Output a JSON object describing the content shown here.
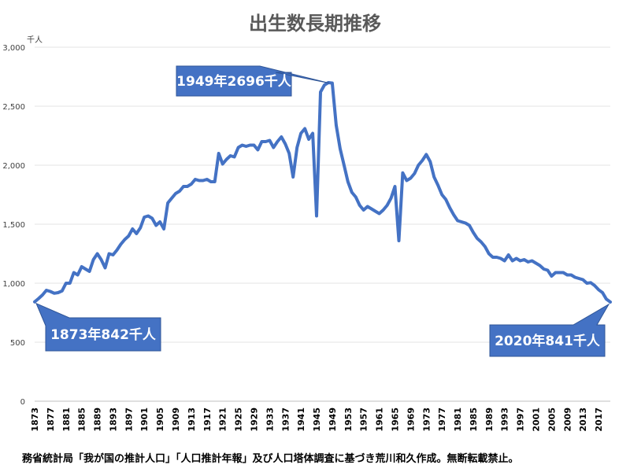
{
  "chart_data": {
    "type": "line",
    "title": "出生数長期推移",
    "unit_label": "千人",
    "ylim": [
      0,
      3000
    ],
    "yticks": [
      0,
      500,
      1000,
      1500,
      2000,
      2500,
      3000
    ],
    "ytick_labels": [
      "0",
      "500",
      "1,000",
      "1,500",
      "2,000",
      "2,500",
      "3,000"
    ],
    "xlim": [
      1873,
      2020
    ],
    "xtick_labels": [
      "1873",
      "1877",
      "1881",
      "1885",
      "1889",
      "1893",
      "1897",
      "1901",
      "1905",
      "1909",
      "1913",
      "1917",
      "1921",
      "1925",
      "1929",
      "1933",
      "1937",
      "1941",
      "1945",
      "1949",
      "1953",
      "1957",
      "1961",
      "1965",
      "1969",
      "1973",
      "1977",
      "1981",
      "1985",
      "1989",
      "1993",
      "1997",
      "2001",
      "2005",
      "2009",
      "2013",
      "2017"
    ],
    "grid": true,
    "line_color": "#4472c4",
    "series": [
      {
        "points": [
          [
            1873,
            842
          ],
          [
            1874,
            870
          ],
          [
            1875,
            900
          ],
          [
            1876,
            940
          ],
          [
            1877,
            930
          ],
          [
            1878,
            915
          ],
          [
            1879,
            920
          ],
          [
            1880,
            935
          ],
          [
            1881,
            1000
          ],
          [
            1882,
            1000
          ],
          [
            1883,
            1090
          ],
          [
            1884,
            1070
          ],
          [
            1885,
            1140
          ],
          [
            1886,
            1120
          ],
          [
            1887,
            1100
          ],
          [
            1888,
            1200
          ],
          [
            1889,
            1250
          ],
          [
            1890,
            1200
          ],
          [
            1891,
            1130
          ],
          [
            1892,
            1250
          ],
          [
            1893,
            1240
          ],
          [
            1894,
            1280
          ],
          [
            1895,
            1330
          ],
          [
            1896,
            1370
          ],
          [
            1897,
            1400
          ],
          [
            1898,
            1460
          ],
          [
            1899,
            1420
          ],
          [
            1900,
            1470
          ],
          [
            1901,
            1560
          ],
          [
            1902,
            1570
          ],
          [
            1903,
            1550
          ],
          [
            1904,
            1490
          ],
          [
            1905,
            1520
          ],
          [
            1906,
            1460
          ],
          [
            1907,
            1680
          ],
          [
            1908,
            1720
          ],
          [
            1909,
            1760
          ],
          [
            1910,
            1780
          ],
          [
            1911,
            1820
          ],
          [
            1912,
            1820
          ],
          [
            1913,
            1840
          ],
          [
            1914,
            1880
          ],
          [
            1915,
            1870
          ],
          [
            1916,
            1870
          ],
          [
            1917,
            1880
          ],
          [
            1918,
            1860
          ],
          [
            1919,
            1860
          ],
          [
            1920,
            2100
          ],
          [
            1921,
            2010
          ],
          [
            1922,
            2050
          ],
          [
            1923,
            2080
          ],
          [
            1924,
            2070
          ],
          [
            1925,
            2150
          ],
          [
            1926,
            2170
          ],
          [
            1927,
            2160
          ],
          [
            1928,
            2170
          ],
          [
            1929,
            2170
          ],
          [
            1930,
            2130
          ],
          [
            1931,
            2200
          ],
          [
            1932,
            2200
          ],
          [
            1933,
            2210
          ],
          [
            1934,
            2150
          ],
          [
            1935,
            2200
          ],
          [
            1936,
            2240
          ],
          [
            1937,
            2180
          ],
          [
            1938,
            2100
          ],
          [
            1939,
            1900
          ],
          [
            1940,
            2150
          ],
          [
            1941,
            2270
          ],
          [
            1942,
            2310
          ],
          [
            1943,
            2220
          ],
          [
            1944,
            2270
          ],
          [
            1945,
            1570
          ],
          [
            1946,
            2620
          ],
          [
            1947,
            2680
          ],
          [
            1948,
            2700
          ],
          [
            1949,
            2696
          ],
          [
            1950,
            2340
          ],
          [
            1951,
            2140
          ],
          [
            1952,
            2000
          ],
          [
            1953,
            1860
          ],
          [
            1954,
            1770
          ],
          [
            1955,
            1730
          ],
          [
            1956,
            1660
          ],
          [
            1957,
            1620
          ],
          [
            1958,
            1650
          ],
          [
            1959,
            1630
          ],
          [
            1960,
            1610
          ],
          [
            1961,
            1590
          ],
          [
            1962,
            1620
          ],
          [
            1963,
            1660
          ],
          [
            1964,
            1720
          ],
          [
            1965,
            1820
          ],
          [
            1966,
            1360
          ],
          [
            1967,
            1935
          ],
          [
            1968,
            1870
          ],
          [
            1969,
            1890
          ],
          [
            1970,
            1930
          ],
          [
            1971,
            2000
          ],
          [
            1972,
            2040
          ],
          [
            1973,
            2091
          ],
          [
            1974,
            2030
          ],
          [
            1975,
            1900
          ],
          [
            1976,
            1830
          ],
          [
            1977,
            1750
          ],
          [
            1978,
            1710
          ],
          [
            1979,
            1640
          ],
          [
            1980,
            1580
          ],
          [
            1981,
            1530
          ],
          [
            1982,
            1520
          ],
          [
            1983,
            1510
          ],
          [
            1984,
            1490
          ],
          [
            1985,
            1430
          ],
          [
            1986,
            1380
          ],
          [
            1987,
            1350
          ],
          [
            1988,
            1310
          ],
          [
            1989,
            1250
          ],
          [
            1990,
            1220
          ],
          [
            1991,
            1220
          ],
          [
            1992,
            1210
          ],
          [
            1993,
            1190
          ],
          [
            1994,
            1240
          ],
          [
            1995,
            1190
          ],
          [
            1996,
            1210
          ],
          [
            1997,
            1190
          ],
          [
            1998,
            1200
          ],
          [
            1999,
            1180
          ],
          [
            2000,
            1190
          ],
          [
            2001,
            1170
          ],
          [
            2002,
            1150
          ],
          [
            2003,
            1120
          ],
          [
            2004,
            1110
          ],
          [
            2005,
            1060
          ],
          [
            2006,
            1090
          ],
          [
            2007,
            1090
          ],
          [
            2008,
            1090
          ],
          [
            2009,
            1070
          ],
          [
            2010,
            1070
          ],
          [
            2011,
            1050
          ],
          [
            2012,
            1040
          ],
          [
            2013,
            1030
          ],
          [
            2014,
            1000
          ],
          [
            2015,
            1005
          ],
          [
            2016,
            980
          ],
          [
            2017,
            945
          ],
          [
            2018,
            920
          ],
          [
            2019,
            865
          ],
          [
            2020,
            841
          ]
        ]
      }
    ],
    "annotations": [
      {
        "label": "1949年2696千人",
        "x": 1949,
        "y": 2696
      },
      {
        "label": "1873年842千人",
        "x": 1873,
        "y": 842
      },
      {
        "label": "2020年841千人",
        "x": 2020,
        "y": 841
      }
    ],
    "source_note": "務省統計局「我が国の推計人口」「人口推計年報」及び人口塔体調査に基づき荒川和久作成。無断転載禁止。"
  }
}
